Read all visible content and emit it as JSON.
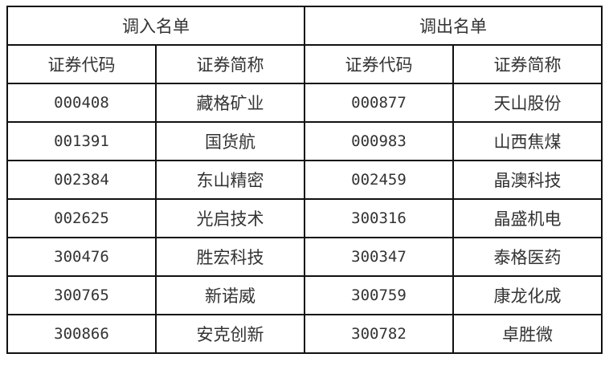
{
  "groups": [
    {
      "title": "调入名单"
    },
    {
      "title": "调出名单"
    }
  ],
  "columns": [
    "证券代码",
    "证券简称",
    "证券代码",
    "证券简称"
  ],
  "rows": [
    [
      "000408",
      "藏格矿业",
      "000877",
      "天山股份"
    ],
    [
      "001391",
      "国货航",
      "000983",
      "山西焦煤"
    ],
    [
      "002384",
      "东山精密",
      "002459",
      "晶澳科技"
    ],
    [
      "002625",
      "光启技术",
      "300316",
      "晶盛机电"
    ],
    [
      "300476",
      "胜宏科技",
      "300347",
      "泰格医药"
    ],
    [
      "300765",
      "新诺威",
      "300759",
      "康龙化成"
    ],
    [
      "300866",
      "安克创新",
      "300782",
      "卓胜微"
    ]
  ]
}
